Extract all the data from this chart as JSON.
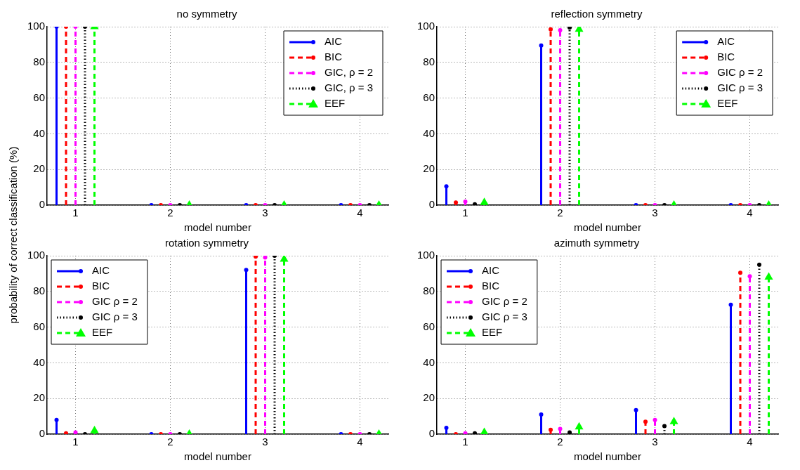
{
  "chart_data": [
    {
      "type": "lollipop",
      "title": "no symmetry",
      "xlabel": "model number",
      "xlim": [
        0.7,
        4.3
      ],
      "xticks": [
        1,
        2,
        3,
        4
      ],
      "ylim": [
        0,
        100
      ],
      "yticks": [
        0,
        20,
        40,
        60,
        80,
        100
      ],
      "grid": true,
      "legend": "top right",
      "series": [
        {
          "name": "AIC",
          "color": "#0000ff",
          "line_style": "solid",
          "marker": "circle",
          "x": [
            0.8,
            1.8,
            2.8,
            3.8
          ],
          "values": [
            100,
            0,
            0,
            0
          ]
        },
        {
          "name": "BIC",
          "color": "#ff0000",
          "line_style": "dashed",
          "marker": "circle",
          "x": [
            0.9,
            1.9,
            2.9,
            3.9
          ],
          "values": [
            100,
            0,
            0,
            0
          ]
        },
        {
          "name": "GIC, ρ = 2",
          "color": "#ff00ff",
          "line_style": "dashed",
          "marker": "circle",
          "x": [
            1,
            2,
            3,
            4
          ],
          "values": [
            100,
            0,
            0,
            0
          ]
        },
        {
          "name": "GIC, ρ = 3",
          "color": "#000000",
          "line_style": "dotted",
          "marker": "circle",
          "x": [
            1.1,
            2.1,
            3.1,
            4.1
          ],
          "values": [
            100,
            0,
            0,
            0
          ]
        },
        {
          "name": "EEF",
          "color": "#00ff00",
          "line_style": "dashed",
          "marker": "triangle",
          "x": [
            1.2,
            2.2,
            3.2,
            4.2
          ],
          "values": [
            100,
            0,
            0,
            0
          ]
        }
      ]
    },
    {
      "type": "lollipop",
      "title": "reflection symmetry",
      "xlabel": "model number",
      "xlim": [
        0.7,
        4.3
      ],
      "xticks": [
        1,
        2,
        3,
        4
      ],
      "ylim": [
        0,
        100
      ],
      "yticks": [
        0,
        20,
        40,
        60,
        80,
        100
      ],
      "grid": true,
      "legend": "top right",
      "series": [
        {
          "name": "AIC",
          "color": "#0000ff",
          "line_style": "solid",
          "marker": "circle",
          "x": [
            0.8,
            1.8,
            2.8,
            3.8
          ],
          "values": [
            10.5,
            89.5,
            0,
            0
          ]
        },
        {
          "name": "BIC",
          "color": "#ff0000",
          "line_style": "dashed",
          "marker": "circle",
          "x": [
            0.9,
            1.9,
            2.9,
            3.9
          ],
          "values": [
            1.5,
            98.5,
            0,
            0
          ]
        },
        {
          "name": "GIC ρ = 2",
          "color": "#ff00ff",
          "line_style": "dashed",
          "marker": "circle",
          "x": [
            1,
            2,
            3,
            4
          ],
          "values": [
            2,
            98,
            0,
            0
          ]
        },
        {
          "name": "GIC ρ = 3",
          "color": "#000000",
          "line_style": "dotted",
          "marker": "circle",
          "x": [
            1.1,
            2.1,
            3.1,
            4.1
          ],
          "values": [
            0.5,
            99.5,
            0,
            0
          ]
        },
        {
          "name": "EEF",
          "color": "#00ff00",
          "line_style": "dashed",
          "marker": "triangle",
          "x": [
            1.2,
            2.2,
            3.2,
            4.2
          ],
          "values": [
            1.5,
            98.5,
            0,
            0
          ]
        }
      ]
    },
    {
      "type": "lollipop",
      "title": "rotation symmetry",
      "xlabel": "model number",
      "ylabel": "probability of correct classification (%)",
      "xlim": [
        0.7,
        4.3
      ],
      "xticks": [
        1,
        2,
        3,
        4
      ],
      "ylim": [
        0,
        100
      ],
      "yticks": [
        0,
        20,
        40,
        60,
        80,
        100
      ],
      "grid": true,
      "legend": "top left",
      "series": [
        {
          "name": "AIC",
          "color": "#0000ff",
          "line_style": "solid",
          "marker": "circle",
          "x": [
            0.8,
            1.8,
            2.8,
            3.8
          ],
          "values": [
            8,
            0,
            92,
            0
          ]
        },
        {
          "name": "BIC",
          "color": "#ff0000",
          "line_style": "dashed",
          "marker": "circle",
          "x": [
            0.9,
            1.9,
            2.9,
            3.9
          ],
          "values": [
            0.5,
            0,
            99.5,
            0
          ]
        },
        {
          "name": "GIC ρ = 2",
          "color": "#ff00ff",
          "line_style": "dashed",
          "marker": "circle",
          "x": [
            1,
            2,
            3,
            4
          ],
          "values": [
            1,
            0,
            99,
            0
          ]
        },
        {
          "name": "GIC ρ = 3",
          "color": "#000000",
          "line_style": "dotted",
          "marker": "circle",
          "x": [
            1.1,
            2.1,
            3.1,
            4.1
          ],
          "values": [
            0,
            0,
            100,
            0
          ]
        },
        {
          "name": "EEF",
          "color": "#00ff00",
          "line_style": "dashed",
          "marker": "triangle",
          "x": [
            1.2,
            2.2,
            3.2,
            4.2
          ],
          "values": [
            2,
            0,
            98,
            0
          ]
        }
      ]
    },
    {
      "type": "lollipop",
      "title": "azimuth symmetry",
      "xlabel": "model number",
      "xlim": [
        0.7,
        4.3
      ],
      "xticks": [
        1,
        2,
        3,
        4
      ],
      "ylim": [
        0,
        100
      ],
      "yticks": [
        0,
        20,
        40,
        60,
        80,
        100
      ],
      "grid": true,
      "legend": "top left",
      "series": [
        {
          "name": "AIC",
          "color": "#0000ff",
          "line_style": "solid",
          "marker": "circle",
          "x": [
            0.8,
            1.8,
            2.8,
            3.8
          ],
          "values": [
            3.5,
            11,
            13.5,
            72.5
          ]
        },
        {
          "name": "BIC",
          "color": "#ff0000",
          "line_style": "dashed",
          "marker": "circle",
          "x": [
            0.9,
            1.9,
            2.9,
            3.9
          ],
          "values": [
            0,
            2.5,
            7,
            90.5
          ]
        },
        {
          "name": "GIC ρ = 2",
          "color": "#ff00ff",
          "line_style": "dashed",
          "marker": "circle",
          "x": [
            1,
            2,
            3,
            4
          ],
          "values": [
            0.5,
            3,
            8,
            88.5
          ]
        },
        {
          "name": "GIC ρ = 3",
          "color": "#000000",
          "line_style": "dotted",
          "marker": "circle",
          "x": [
            1.1,
            2.1,
            3.1,
            4.1
          ],
          "values": [
            0.5,
            1,
            4.5,
            95
          ]
        },
        {
          "name": "EEF",
          "color": "#00ff00",
          "line_style": "dashed",
          "marker": "triangle",
          "x": [
            1.2,
            2.2,
            3.2,
            4.2
          ],
          "values": [
            1,
            4,
            7,
            88
          ]
        }
      ]
    }
  ]
}
